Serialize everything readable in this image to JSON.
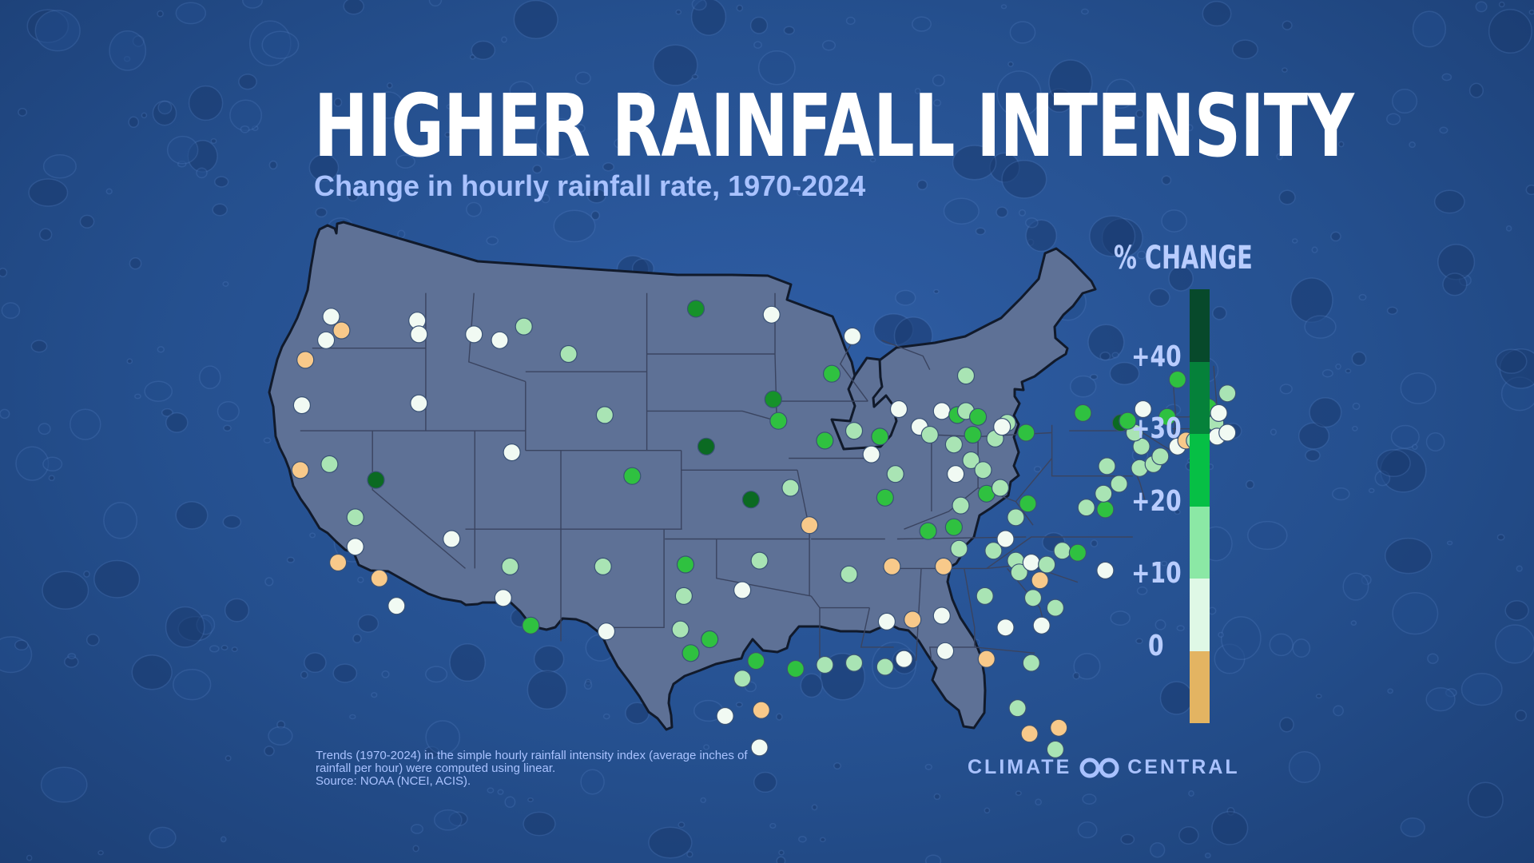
{
  "title": "HIGHER RAINFALL INTENSITY",
  "subtitle": "Change in hourly rainfall rate, 1970-2024",
  "legend": {
    "title": "% CHANGE",
    "ticks": [
      "+40",
      "+30",
      "+20",
      "+10",
      "0"
    ],
    "bins": [
      {
        "range": "40+",
        "color": "#07492b"
      },
      {
        "range": "30-40",
        "color": "#05813a"
      },
      {
        "range": "20-30",
        "color": "#06bf45"
      },
      {
        "range": "10-20",
        "color": "#8be8a5"
      },
      {
        "range": "0-10",
        "color": "#dff8e6"
      },
      {
        "range": "<0",
        "color": "#e3b462"
      }
    ]
  },
  "category_colors": {
    "neg": "#f8c98a",
    "c0": "#f1faf3",
    "c10": "#a9e4b4",
    "c20": "#2fc140",
    "c30": "#16922a",
    "c40": "#0b6a22"
  },
  "map_colors": {
    "land": "#5e7196",
    "border": "#3a4460",
    "coast": "#111a2b"
  },
  "stations": [
    {
      "id": 1,
      "lon": -122.4,
      "lat": 47.8,
      "cat": "c0"
    },
    {
      "id": 2,
      "lon": -121.8,
      "lat": 47.1,
      "cat": "neg"
    },
    {
      "id": 3,
      "lon": -122.7,
      "lat": 46.6,
      "cat": "c0"
    },
    {
      "id": 4,
      "lon": -117.4,
      "lat": 47.6,
      "cat": "c0"
    },
    {
      "id": 5,
      "lon": -117.3,
      "lat": 46.9,
      "cat": "c0"
    },
    {
      "id": 6,
      "lon": -123.9,
      "lat": 45.6,
      "cat": "neg"
    },
    {
      "id": 7,
      "lon": -124.1,
      "lat": 43.3,
      "cat": "c0"
    },
    {
      "id": 8,
      "lon": -117.3,
      "lat": 43.4,
      "cat": "c0"
    },
    {
      "id": 9,
      "lon": -114.1,
      "lat": 46.9,
      "cat": "c0"
    },
    {
      "id": 10,
      "lon": -112.6,
      "lat": 46.6,
      "cat": "c0"
    },
    {
      "id": 11,
      "lon": -111.2,
      "lat": 47.3,
      "cat": "c10"
    },
    {
      "id": 12,
      "lon": -108.6,
      "lat": 45.9,
      "cat": "c10"
    },
    {
      "id": 13,
      "lon": -106.5,
      "lat": 42.8,
      "cat": "c10"
    },
    {
      "id": 14,
      "lon": -111.9,
      "lat": 40.9,
      "cat": "c0"
    },
    {
      "id": 15,
      "lon": -119.8,
      "lat": 39.5,
      "cat": "c40"
    },
    {
      "id": 16,
      "lon": -124.2,
      "lat": 40.0,
      "cat": "neg"
    },
    {
      "id": 17,
      "lon": -122.5,
      "lat": 40.3,
      "cat": "c10"
    },
    {
      "id": 18,
      "lon": -121.0,
      "lat": 37.6,
      "cat": "c10"
    },
    {
      "id": 19,
      "lon": -121.0,
      "lat": 36.1,
      "cat": "c0"
    },
    {
      "id": 20,
      "lon": -122.0,
      "lat": 35.3,
      "cat": "neg"
    },
    {
      "id": 21,
      "lon": -119.6,
      "lat": 34.5,
      "cat": "neg"
    },
    {
      "id": 22,
      "lon": -118.6,
      "lat": 33.1,
      "cat": "c0"
    },
    {
      "id": 23,
      "lon": -115.4,
      "lat": 36.5,
      "cat": "c0"
    },
    {
      "id": 24,
      "lon": -112.0,
      "lat": 35.1,
      "cat": "c10"
    },
    {
      "id": 25,
      "lon": -112.4,
      "lat": 33.5,
      "cat": "c0"
    },
    {
      "id": 26,
      "lon": -110.8,
      "lat": 32.1,
      "cat": "c20"
    },
    {
      "id": 27,
      "lon": -104.9,
      "lat": 39.7,
      "cat": "c20"
    },
    {
      "id": 28,
      "lon": -106.6,
      "lat": 35.1,
      "cat": "c10"
    },
    {
      "id": 29,
      "lon": -106.4,
      "lat": 31.8,
      "cat": "c0"
    },
    {
      "id": 30,
      "lon": -101.2,
      "lat": 48.2,
      "cat": "c30"
    },
    {
      "id": 31,
      "lon": -96.8,
      "lat": 47.9,
      "cat": "c0"
    },
    {
      "id": 32,
      "lon": -92.1,
      "lat": 46.8,
      "cat": "c0"
    },
    {
      "id": 33,
      "lon": -93.3,
      "lat": 44.9,
      "cat": "c20"
    },
    {
      "id": 34,
      "lon": -96.7,
      "lat": 43.6,
      "cat": "c30"
    },
    {
      "id": 35,
      "lon": -96.4,
      "lat": 42.5,
      "cat": "c20"
    },
    {
      "id": 36,
      "lon": -100.6,
      "lat": 41.2,
      "cat": "c40"
    },
    {
      "id": 37,
      "lon": -98.0,
      "lat": 38.5,
      "cat": "c40"
    },
    {
      "id": 38,
      "lon": -95.7,
      "lat": 39.1,
      "cat": "c10"
    },
    {
      "id": 39,
      "lon": -93.7,
      "lat": 41.5,
      "cat": "c20"
    },
    {
      "id": 40,
      "lon": -92.0,
      "lat": 42.0,
      "cat": "c10"
    },
    {
      "id": 41,
      "lon": -90.5,
      "lat": 41.7,
      "cat": "c20"
    },
    {
      "id": 42,
      "lon": -89.4,
      "lat": 43.1,
      "cat": "c0"
    },
    {
      "id": 43,
      "lon": -88.2,
      "lat": 42.2,
      "cat": "c0"
    },
    {
      "id": 44,
      "lon": -89.6,
      "lat": 39.8,
      "cat": "c10"
    },
    {
      "id": 45,
      "lon": -91.0,
      "lat": 40.8,
      "cat": "c0"
    },
    {
      "id": 46,
      "lon": -90.2,
      "lat": 38.6,
      "cat": "c20"
    },
    {
      "id": 47,
      "lon": -94.6,
      "lat": 37.2,
      "cat": "neg"
    },
    {
      "id": 48,
      "lon": -97.5,
      "lat": 35.4,
      "cat": "c10"
    },
    {
      "id": 49,
      "lon": -92.3,
      "lat": 34.7,
      "cat": "c10"
    },
    {
      "id": 50,
      "lon": -101.8,
      "lat": 35.2,
      "cat": "c20"
    },
    {
      "id": 51,
      "lon": -101.9,
      "lat": 33.6,
      "cat": "c10"
    },
    {
      "id": 52,
      "lon": -98.5,
      "lat": 33.9,
      "cat": "c0"
    },
    {
      "id": 53,
      "lon": -100.4,
      "lat": 31.4,
      "cat": "c20"
    },
    {
      "id": 54,
      "lon": -102.1,
      "lat": 31.9,
      "cat": "c10"
    },
    {
      "id": 55,
      "lon": -101.5,
      "lat": 30.7,
      "cat": "c20"
    },
    {
      "id": 56,
      "lon": -97.7,
      "lat": 30.3,
      "cat": "c20"
    },
    {
      "id": 57,
      "lon": -98.5,
      "lat": 29.4,
      "cat": "c10"
    },
    {
      "id": 58,
      "lon": -99.5,
      "lat": 27.5,
      "cat": "c0"
    },
    {
      "id": 59,
      "lon": -97.4,
      "lat": 27.8,
      "cat": "neg"
    },
    {
      "id": 60,
      "lon": -97.5,
      "lat": 25.9,
      "cat": "c0"
    },
    {
      "id": 61,
      "lon": -95.4,
      "lat": 29.9,
      "cat": "c20"
    },
    {
      "id": 62,
      "lon": -93.7,
      "lat": 30.1,
      "cat": "c10"
    },
    {
      "id": 63,
      "lon": -92.0,
      "lat": 30.2,
      "cat": "c10"
    },
    {
      "id": 64,
      "lon": -90.2,
      "lat": 30.0,
      "cat": "c10"
    },
    {
      "id": 65,
      "lon": -89.1,
      "lat": 30.4,
      "cat": "c0"
    },
    {
      "id": 66,
      "lon": -90.1,
      "lat": 32.3,
      "cat": "c0"
    },
    {
      "id": 67,
      "lon": -89.8,
      "lat": 35.1,
      "cat": "neg"
    },
    {
      "id": 68,
      "lon": -88.6,
      "lat": 32.4,
      "cat": "neg"
    },
    {
      "id": 69,
      "lon": -86.8,
      "lat": 35.1,
      "cat": "neg"
    },
    {
      "id": 70,
      "lon": -86.9,
      "lat": 32.6,
      "cat": "c0"
    },
    {
      "id": 71,
      "lon": -86.7,
      "lat": 30.8,
      "cat": "c0"
    },
    {
      "id": 72,
      "lon": -87.7,
      "lat": 36.9,
      "cat": "c20"
    },
    {
      "id": 73,
      "lon": -86.2,
      "lat": 37.1,
      "cat": "c20"
    },
    {
      "id": 74,
      "lon": -85.8,
      "lat": 38.2,
      "cat": "c10"
    },
    {
      "id": 75,
      "lon": -87.6,
      "lat": 41.8,
      "cat": "c10"
    },
    {
      "id": 76,
      "lon": -86.9,
      "lat": 43.0,
      "cat": "c0"
    },
    {
      "id": 77,
      "lon": -86.0,
      "lat": 42.8,
      "cat": "c20"
    },
    {
      "id": 78,
      "lon": -85.5,
      "lat": 44.8,
      "cat": "c10"
    },
    {
      "id": 79,
      "lon": -85.5,
      "lat": 43.0,
      "cat": "c10"
    },
    {
      "id": 80,
      "lon": -84.8,
      "lat": 42.7,
      "cat": "c20"
    },
    {
      "id": 81,
      "lon": -85.1,
      "lat": 41.8,
      "cat": "c20"
    },
    {
      "id": 82,
      "lon": -86.2,
      "lat": 41.3,
      "cat": "c10"
    },
    {
      "id": 83,
      "lon": -85.2,
      "lat": 40.5,
      "cat": "c10"
    },
    {
      "id": 84,
      "lon": -86.1,
      "lat": 39.8,
      "cat": "c0"
    },
    {
      "id": 85,
      "lon": -84.5,
      "lat": 40.0,
      "cat": "c10"
    },
    {
      "id": 86,
      "lon": -84.3,
      "lat": 38.8,
      "cat": "c20"
    },
    {
      "id": 87,
      "lon": -83.5,
      "lat": 39.1,
      "cat": "c10"
    },
    {
      "id": 88,
      "lon": -83.8,
      "lat": 41.6,
      "cat": "c10"
    },
    {
      "id": 89,
      "lon": -83.1,
      "lat": 42.4,
      "cat": "c10"
    },
    {
      "id": 90,
      "lon": -82.0,
      "lat": 41.9,
      "cat": "c20"
    },
    {
      "id": 91,
      "lon": -83.4,
      "lat": 42.2,
      "cat": "c0"
    },
    {
      "id": 92,
      "lon": -85.9,
      "lat": 36.0,
      "cat": "c10"
    },
    {
      "id": 93,
      "lon": -83.9,
      "lat": 35.9,
      "cat": "c10"
    },
    {
      "id": 94,
      "lon": -83.2,
      "lat": 36.5,
      "cat": "c0"
    },
    {
      "id": 95,
      "lon": -82.6,
      "lat": 37.6,
      "cat": "c10"
    },
    {
      "id": 96,
      "lon": -81.9,
      "lat": 38.3,
      "cat": "c20"
    },
    {
      "id": 97,
      "lon": -84.4,
      "lat": 33.6,
      "cat": "c10"
    },
    {
      "id": 98,
      "lon": -83.2,
      "lat": 32.0,
      "cat": "c0"
    },
    {
      "id": 99,
      "lon": -82.6,
      "lat": 35.4,
      "cat": "c10"
    },
    {
      "id": 100,
      "lon": -82.4,
      "lat": 34.8,
      "cat": "c10"
    },
    {
      "id": 101,
      "lon": -81.7,
      "lat": 35.3,
      "cat": "c0"
    },
    {
      "id": 102,
      "lon": -81.2,
      "lat": 34.4,
      "cat": "neg"
    },
    {
      "id": 103,
      "lon": -81.6,
      "lat": 33.5,
      "cat": "c10"
    },
    {
      "id": 104,
      "lon": -80.8,
      "lat": 35.2,
      "cat": "c10"
    },
    {
      "id": 105,
      "lon": -79.9,
      "lat": 35.9,
      "cat": "c10"
    },
    {
      "id": 106,
      "lon": -79.0,
      "lat": 35.8,
      "cat": "c20"
    },
    {
      "id": 107,
      "lon": -77.4,
      "lat": 34.9,
      "cat": "c0"
    },
    {
      "id": 108,
      "lon": -80.3,
      "lat": 33.0,
      "cat": "c10"
    },
    {
      "id": 109,
      "lon": -81.1,
      "lat": 32.1,
      "cat": "c0"
    },
    {
      "id": 110,
      "lon": -81.7,
      "lat": 30.2,
      "cat": "c10"
    },
    {
      "id": 111,
      "lon": -84.3,
      "lat": 30.4,
      "cat": "neg"
    },
    {
      "id": 112,
      "lon": -82.5,
      "lat": 27.9,
      "cat": "c10"
    },
    {
      "id": 113,
      "lon": -81.8,
      "lat": 26.6,
      "cat": "neg"
    },
    {
      "id": 114,
      "lon": -80.1,
      "lat": 26.9,
      "cat": "neg"
    },
    {
      "id": 115,
      "lon": -80.3,
      "lat": 25.8,
      "cat": "c10"
    },
    {
      "id": 116,
      "lon": -77.4,
      "lat": 38.0,
      "cat": "c20"
    },
    {
      "id": 117,
      "lon": -78.5,
      "lat": 38.1,
      "cat": "c10"
    },
    {
      "id": 118,
      "lon": -77.5,
      "lat": 38.8,
      "cat": "c10"
    },
    {
      "id": 119,
      "lon": -76.6,
      "lat": 39.3,
      "cat": "c10"
    },
    {
      "id": 120,
      "lon": -77.3,
      "lat": 40.2,
      "cat": "c10"
    },
    {
      "id": 121,
      "lon": -75.4,
      "lat": 40.1,
      "cat": "c10"
    },
    {
      "id": 122,
      "lon": -74.6,
      "lat": 40.3,
      "cat": "c10"
    },
    {
      "id": 123,
      "lon": -74.2,
      "lat": 40.7,
      "cat": "c10"
    },
    {
      "id": 124,
      "lon": -75.3,
      "lat": 41.2,
      "cat": "c10"
    },
    {
      "id": 125,
      "lon": -75.7,
      "lat": 41.9,
      "cat": "c10"
    },
    {
      "id": 126,
      "lon": -73.2,
      "lat": 41.2,
      "cat": "c0"
    },
    {
      "id": 127,
      "lon": -72.7,
      "lat": 41.5,
      "cat": "neg"
    },
    {
      "id": 128,
      "lon": -76.5,
      "lat": 42.4,
      "cat": "c40"
    },
    {
      "id": 129,
      "lon": -76.1,
      "lat": 42.5,
      "cat": "c20"
    },
    {
      "id": 130,
      "lon": -78.7,
      "lat": 42.9,
      "cat": "c20"
    },
    {
      "id": 131,
      "lon": -75.2,
      "lat": 43.1,
      "cat": "c0"
    },
    {
      "id": 132,
      "lon": -73.8,
      "lat": 42.7,
      "cat": "c20"
    },
    {
      "id": 133,
      "lon": -73.2,
      "lat": 44.6,
      "cat": "c20"
    },
    {
      "id": 134,
      "lon": -71.4,
      "lat": 43.2,
      "cat": "c20"
    },
    {
      "id": 135,
      "lon": -70.3,
      "lat": 43.9,
      "cat": "c10"
    },
    {
      "id": 136,
      "lon": -71.0,
      "lat": 42.4,
      "cat": "c10"
    },
    {
      "id": 137,
      "lon": -70.9,
      "lat": 41.7,
      "cat": "c0"
    },
    {
      "id": 138,
      "lon": -70.3,
      "lat": 41.9,
      "cat": "c0"
    },
    {
      "id": 139,
      "lon": -70.8,
      "lat": 42.9,
      "cat": "c0"
    },
    {
      "id": 140,
      "lon": -72.2,
      "lat": 41.5,
      "cat": "c10"
    }
  ],
  "footnote": "Trends (1970-2024) in the simple hourly rainfall intensity index (average inches of rainfall per hour) were computed using linear.\nSource: NOAA (NCEI, ACIS).",
  "footnote_line1": "Trends (1970-2024) in the simple hourly rainfall intensity index (average inches of",
  "footnote_line2": "rainfall per hour) were computed using linear.",
  "footnote_line3": "Source: NOAA (NCEI, ACIS).",
  "brand": {
    "left": "CLIMATE",
    "right": "CENTRAL",
    "logo_icon": "infinity-loop-icon"
  }
}
